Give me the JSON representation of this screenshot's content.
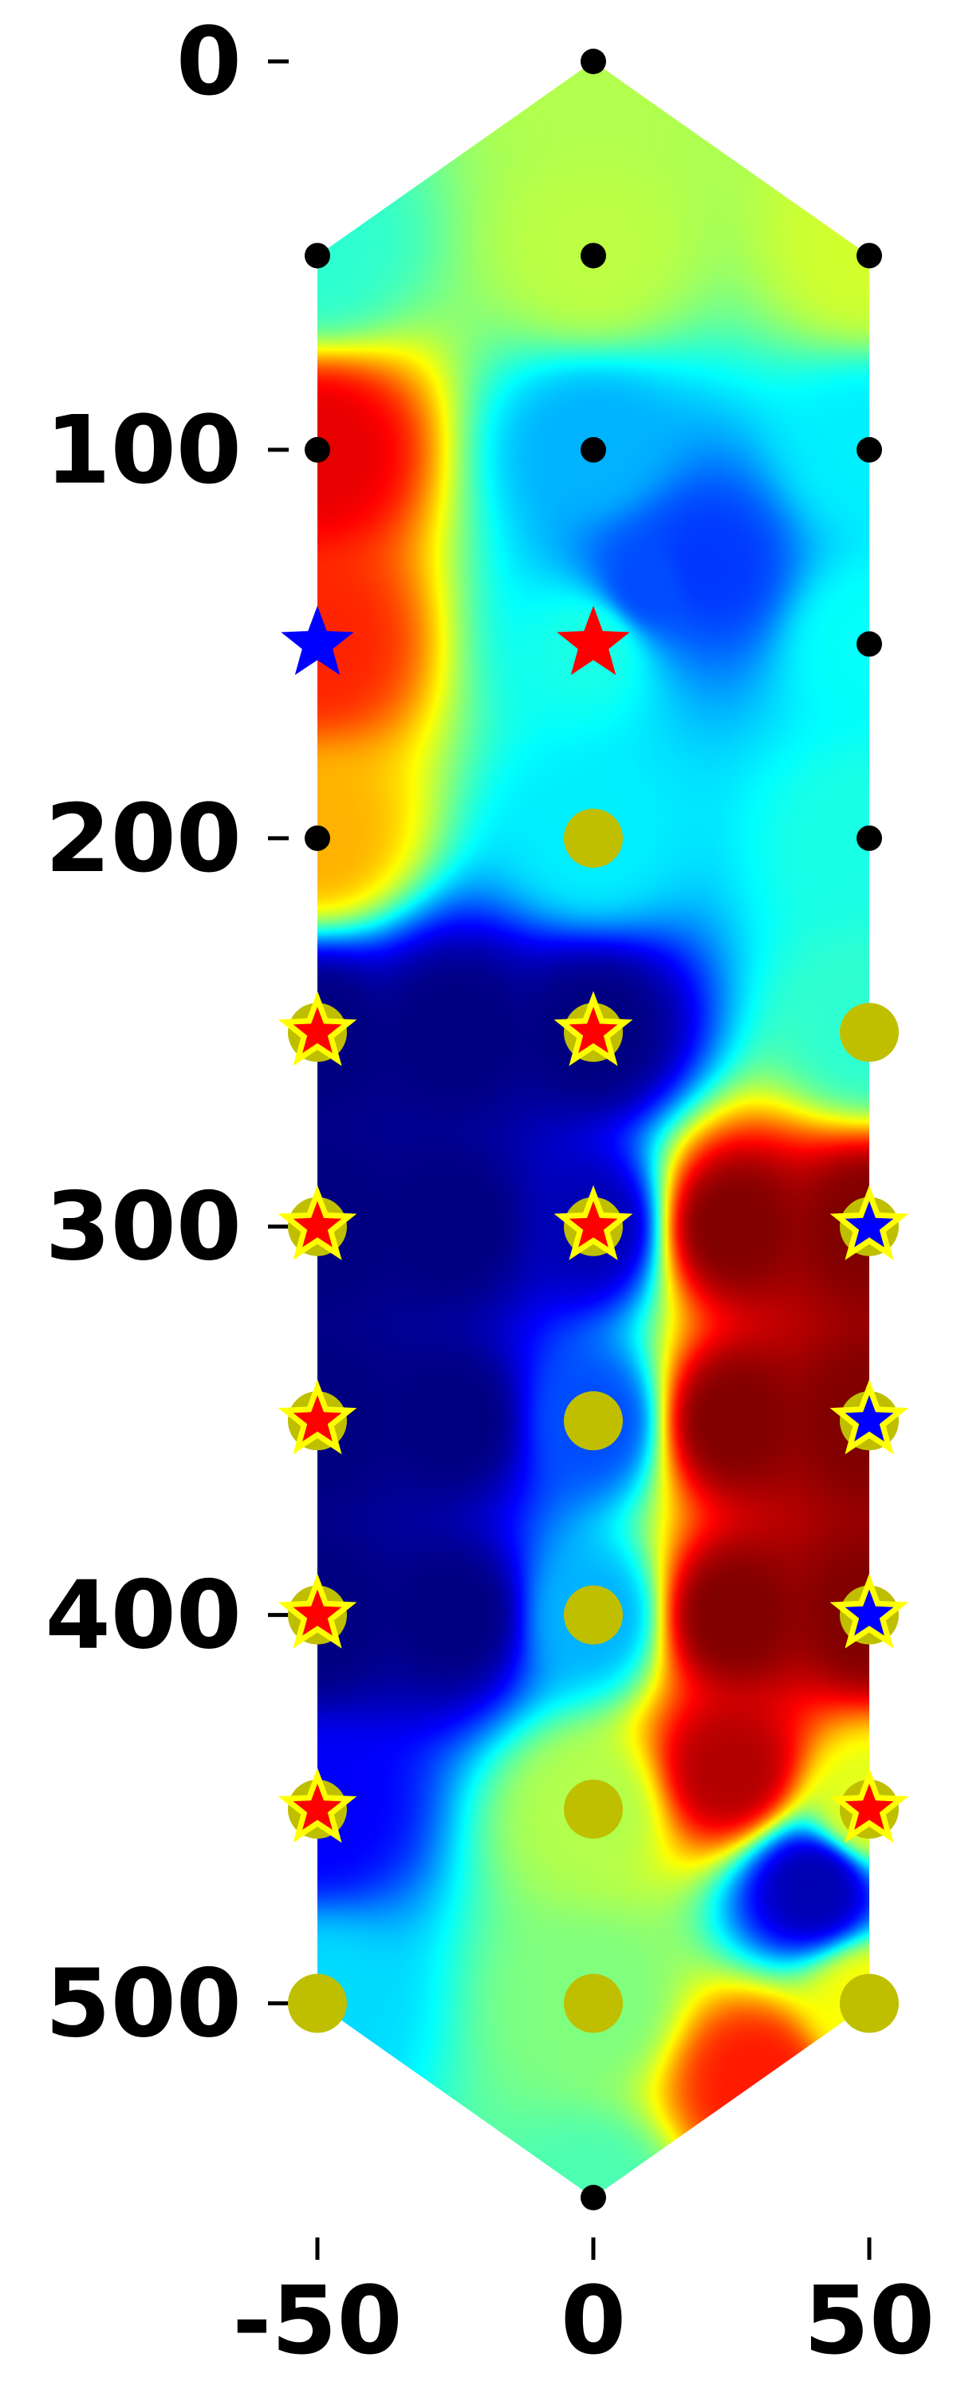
{
  "chart_data": {
    "type": "heatmap",
    "title": "",
    "xlabel": "",
    "ylabel": "",
    "xlim": [
      -50,
      50
    ],
    "ylim": [
      0,
      550
    ],
    "y_inverted": true,
    "colormap": "jet",
    "grid": false,
    "legend": "none",
    "x_ticks": [
      -50,
      0,
      50
    ],
    "y_ticks": [
      0,
      100,
      200,
      300,
      400,
      500
    ],
    "x_tick_labels": [
      "-50",
      "0",
      "50"
    ],
    "y_tick_labels": [
      "0",
      "100",
      "200",
      "300",
      "400",
      "500"
    ],
    "region_outline": [
      [
        0,
        0
      ],
      [
        50,
        50
      ],
      [
        50,
        500
      ],
      [
        0,
        550
      ],
      [
        -50,
        500
      ],
      [
        -50,
        50
      ]
    ],
    "field_points": [
      {
        "x": 0,
        "y": 0,
        "v": 0.55
      },
      {
        "x": -50,
        "y": 50,
        "v": 0.42
      },
      {
        "x": 0,
        "y": 50,
        "v": 0.56
      },
      {
        "x": 50,
        "y": 50,
        "v": 0.58
      },
      {
        "x": -50,
        "y": 100,
        "v": 0.9
      },
      {
        "x": 0,
        "y": 100,
        "v": 0.3
      },
      {
        "x": 50,
        "y": 100,
        "v": 0.36
      },
      {
        "x": -50,
        "y": 150,
        "v": 0.84
      },
      {
        "x": 0,
        "y": 150,
        "v": 0.4
      },
      {
        "x": 50,
        "y": 150,
        "v": 0.38
      },
      {
        "x": -50,
        "y": 200,
        "v": 0.7
      },
      {
        "x": 0,
        "y": 200,
        "v": 0.36
      },
      {
        "x": 50,
        "y": 200,
        "v": 0.4
      },
      {
        "x": -50,
        "y": 250,
        "v": 0.0
      },
      {
        "x": 0,
        "y": 250,
        "v": 0.0
      },
      {
        "x": 50,
        "y": 250,
        "v": 0.42
      },
      {
        "x": -50,
        "y": 300,
        "v": 0.0
      },
      {
        "x": 0,
        "y": 300,
        "v": 0.05
      },
      {
        "x": 50,
        "y": 300,
        "v": 1.0
      },
      {
        "x": -50,
        "y": 350,
        "v": 0.0
      },
      {
        "x": 0,
        "y": 350,
        "v": 0.2
      },
      {
        "x": 50,
        "y": 350,
        "v": 1.0
      },
      {
        "x": -50,
        "y": 400,
        "v": 0.0
      },
      {
        "x": 0,
        "y": 400,
        "v": 0.3
      },
      {
        "x": 50,
        "y": 400,
        "v": 1.0
      },
      {
        "x": -50,
        "y": 450,
        "v": 0.12
      },
      {
        "x": 0,
        "y": 450,
        "v": 0.55
      },
      {
        "x": 50,
        "y": 450,
        "v": 0.6
      },
      {
        "x": -50,
        "y": 500,
        "v": 0.34
      },
      {
        "x": 0,
        "y": 500,
        "v": 0.5
      },
      {
        "x": 50,
        "y": 500,
        "v": 0.62
      },
      {
        "x": 0,
        "y": 550,
        "v": 0.45
      },
      {
        "x": 25,
        "y": 300,
        "v": 1.0
      },
      {
        "x": 25,
        "y": 350,
        "v": 1.0
      },
      {
        "x": 25,
        "y": 400,
        "v": 1.0
      },
      {
        "x": 25,
        "y": 440,
        "v": 0.95
      },
      {
        "x": 40,
        "y": 470,
        "v": 0.05
      },
      {
        "x": -25,
        "y": 250,
        "v": 0.0
      },
      {
        "x": -25,
        "y": 300,
        "v": 0.0
      },
      {
        "x": -25,
        "y": 350,
        "v": 0.0
      },
      {
        "x": -25,
        "y": 400,
        "v": 0.0
      },
      {
        "x": 30,
        "y": 520,
        "v": 0.85
      },
      {
        "x": 10,
        "y": 135,
        "v": 0.2
      },
      {
        "x": 20,
        "y": 130,
        "v": 0.18
      }
    ],
    "black_points": [
      {
        "x": 0,
        "y": 0
      },
      {
        "x": -50,
        "y": 50
      },
      {
        "x": 0,
        "y": 50
      },
      {
        "x": 50,
        "y": 50
      },
      {
        "x": -50,
        "y": 100
      },
      {
        "x": 0,
        "y": 100
      },
      {
        "x": 50,
        "y": 100
      },
      {
        "x": 50,
        "y": 150
      },
      {
        "x": -50,
        "y": 200
      },
      {
        "x": 50,
        "y": 200
      },
      {
        "x": 0,
        "y": 550
      }
    ],
    "olive_points": [
      {
        "x": 0,
        "y": 200
      },
      {
        "x": -50,
        "y": 250
      },
      {
        "x": 0,
        "y": 250
      },
      {
        "x": 50,
        "y": 250
      },
      {
        "x": -50,
        "y": 300
      },
      {
        "x": 0,
        "y": 300
      },
      {
        "x": 50,
        "y": 300
      },
      {
        "x": -50,
        "y": 350
      },
      {
        "x": 0,
        "y": 350
      },
      {
        "x": 50,
        "y": 350
      },
      {
        "x": -50,
        "y": 400
      },
      {
        "x": 0,
        "y": 400
      },
      {
        "x": 50,
        "y": 400
      },
      {
        "x": -50,
        "y": 450
      },
      {
        "x": 0,
        "y": 450
      },
      {
        "x": 50,
        "y": 450
      },
      {
        "x": -50,
        "y": 500
      },
      {
        "x": 0,
        "y": 500
      },
      {
        "x": 50,
        "y": 500
      }
    ],
    "star_markers": [
      {
        "x": -50,
        "y": 150,
        "color": "blue",
        "outline": "none"
      },
      {
        "x": 0,
        "y": 150,
        "color": "red",
        "outline": "none"
      },
      {
        "x": -50,
        "y": 250,
        "color": "red",
        "outline": "yellow"
      },
      {
        "x": 0,
        "y": 250,
        "color": "red",
        "outline": "yellow"
      },
      {
        "x": -50,
        "y": 300,
        "color": "red",
        "outline": "yellow"
      },
      {
        "x": 0,
        "y": 300,
        "color": "red",
        "outline": "yellow"
      },
      {
        "x": 50,
        "y": 300,
        "color": "blue",
        "outline": "yellow"
      },
      {
        "x": -50,
        "y": 350,
        "color": "red",
        "outline": "yellow"
      },
      {
        "x": 50,
        "y": 350,
        "color": "blue",
        "outline": "yellow"
      },
      {
        "x": -50,
        "y": 400,
        "color": "red",
        "outline": "yellow"
      },
      {
        "x": 50,
        "y": 400,
        "color": "blue",
        "outline": "yellow"
      },
      {
        "x": -50,
        "y": 450,
        "color": "red",
        "outline": "yellow"
      },
      {
        "x": 50,
        "y": 450,
        "color": "red",
        "outline": "yellow"
      }
    ]
  },
  "colors": {
    "black_point": "#000000",
    "olive_point": "#bfbf00",
    "star_red": "#ff0000",
    "star_blue": "#0000ff",
    "star_outline": "#ffff00",
    "tick": "#000000",
    "background": "#ffffff"
  }
}
